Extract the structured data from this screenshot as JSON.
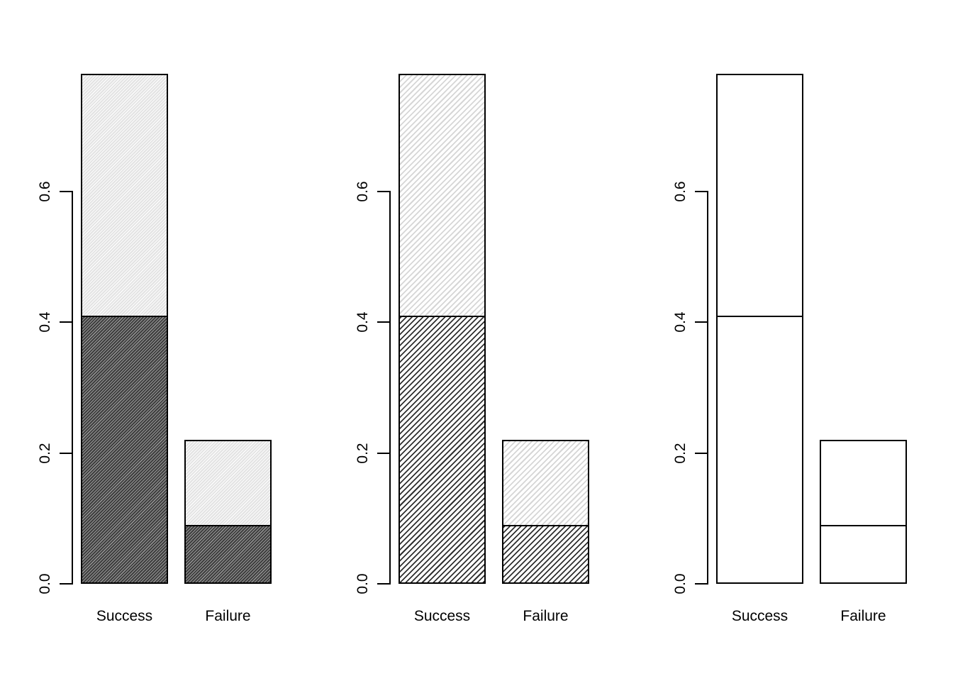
{
  "figure": {
    "background": "#ffffff",
    "text_color": "#000000",
    "bar_border_color": "#000000",
    "palette": {
      "solid_dark_fill": "#4d4d4d",
      "solid_light_fill": "#e6e6e6",
      "hatch_dark_line": "#2f2f2f",
      "hatch_light_line": "#d6d6d6"
    }
  },
  "chart_data": [
    {
      "type": "bar",
      "stacked": true,
      "position": "left",
      "fill_style": "gray-fill-hatched",
      "title": "",
      "xlabel": "",
      "ylabel": "",
      "categories": [
        "Success",
        "Failure"
      ],
      "series": [
        {
          "name": "lower-segment",
          "values": [
            0.41,
            0.09
          ]
        },
        {
          "name": "upper-segment",
          "values": [
            0.37,
            0.13
          ]
        }
      ],
      "totals": [
        0.78,
        0.22
      ],
      "ytick_labels": [
        "0.0",
        "0.2",
        "0.4",
        "0.6"
      ],
      "ytick_values": [
        0,
        0.2,
        0.4,
        0.6
      ],
      "ylim": [
        0,
        0.78
      ],
      "grid": false,
      "legend": "none"
    },
    {
      "type": "bar",
      "stacked": true,
      "position": "middle",
      "fill_style": "diagonal-hatch",
      "title": "",
      "xlabel": "",
      "ylabel": "",
      "categories": [
        "Success",
        "Failure"
      ],
      "series": [
        {
          "name": "lower-segment",
          "values": [
            0.41,
            0.09
          ]
        },
        {
          "name": "upper-segment",
          "values": [
            0.37,
            0.13
          ]
        }
      ],
      "totals": [
        0.78,
        0.22
      ],
      "ytick_labels": [
        "0.0",
        "0.2",
        "0.4",
        "0.6"
      ],
      "ytick_values": [
        0,
        0.2,
        0.4,
        0.6
      ],
      "ylim": [
        0,
        0.78
      ],
      "grid": false,
      "legend": "none"
    },
    {
      "type": "bar",
      "stacked": true,
      "position": "right",
      "fill_style": "plain-white",
      "title": "",
      "xlabel": "",
      "ylabel": "",
      "categories": [
        "Success",
        "Failure"
      ],
      "series": [
        {
          "name": "lower-segment",
          "values": [
            0.41,
            0.09
          ]
        },
        {
          "name": "upper-segment",
          "values": [
            0.37,
            0.13
          ]
        }
      ],
      "totals": [
        0.78,
        0.22
      ],
      "ytick_labels": [
        "0.0",
        "0.2",
        "0.4",
        "0.6"
      ],
      "ytick_values": [
        0,
        0.2,
        0.4,
        0.6
      ],
      "ylim": [
        0,
        0.78
      ],
      "grid": false,
      "legend": "none"
    }
  ]
}
